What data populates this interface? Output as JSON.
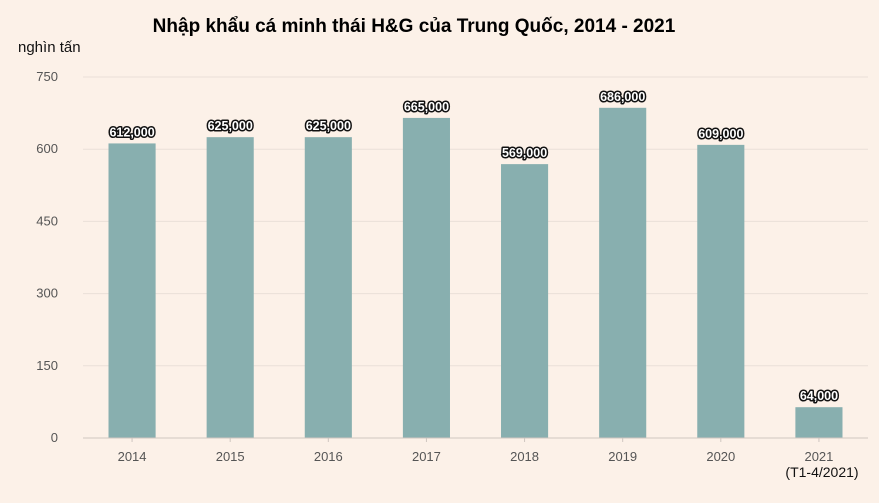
{
  "chart_data": {
    "type": "bar",
    "title": "Nhập khẩu cá minh thái H&G của Trung Quốc, 2014 - 2021",
    "ylabel": "nghìn tấn",
    "xlabel": "",
    "categories": [
      "2014",
      "2015",
      "2016",
      "2017",
      "2018",
      "2019",
      "2020",
      "2021"
    ],
    "values": [
      612,
      625,
      625,
      665,
      569,
      686,
      609,
      64
    ],
    "data_labels": [
      "612,000",
      "625,000",
      "625,000",
      "665,000",
      "569,000",
      "686,000",
      "609,000",
      "64,000"
    ],
    "ylim": [
      0,
      750
    ],
    "yticks": [
      0,
      150,
      300,
      450,
      600,
      750
    ],
    "grid": true,
    "note": "(T1-4/2021)",
    "colors": {
      "bar": "#88afaf",
      "background": "#fcf1e8",
      "grid": "#eadfd8"
    }
  }
}
